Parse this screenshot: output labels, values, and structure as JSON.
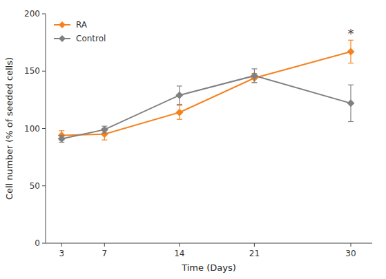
{
  "chart_data": {
    "type": "line",
    "x": [
      3,
      7,
      14,
      21,
      30
    ],
    "xlabel": "Time (Days)",
    "ylabel": "Cell number (% of seeded cells)",
    "xlim": [
      1.5,
      32
    ],
    "xticks": [
      3,
      7,
      14,
      21,
      30
    ],
    "ylim": [
      0,
      200
    ],
    "yticks": [
      0,
      50,
      100,
      150,
      200
    ],
    "grid": false,
    "legend": "upper left",
    "marker": "diamond",
    "series": [
      {
        "name": "RA",
        "color": "#F5821E",
        "values": [
          94,
          95,
          114,
          144,
          167
        ],
        "errors": [
          4,
          5,
          6,
          4,
          10
        ]
      },
      {
        "name": "Control",
        "color": "#808080",
        "values": [
          91,
          99,
          129,
          146,
          122
        ],
        "errors": [
          3,
          3,
          8,
          6,
          16
        ]
      }
    ],
    "annotations": [
      {
        "text": "*",
        "x": 30,
        "y": 179
      }
    ]
  }
}
